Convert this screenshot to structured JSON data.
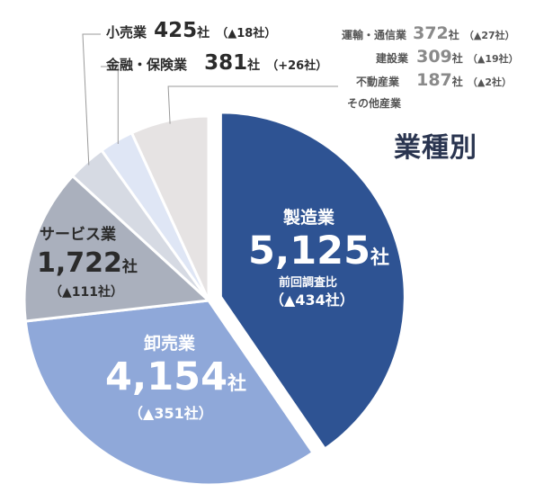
{
  "chart_data": {
    "type": "pie",
    "title": "業種別",
    "unit": "社",
    "change_caption": "前回調査比",
    "slices": [
      {
        "name": "製造業",
        "value": 5125,
        "value_text": "5,125",
        "change": "▲434社",
        "color": "#2e5393"
      },
      {
        "name": "卸売業",
        "value": 4154,
        "value_text": "4,154",
        "change": "▲351社",
        "color": "#8fa8d9"
      },
      {
        "name": "サービス業",
        "value": 1722,
        "value_text": "1,722",
        "change": "▲111社",
        "color": "#aab0bd"
      },
      {
        "name": "小売業",
        "value": 425,
        "value_text": "425",
        "change": "▲18社",
        "color": "#d6dae3"
      },
      {
        "name": "金融・保険業",
        "value": 381,
        "value_text": "381",
        "change": "+26社",
        "color": "#dfe6f5"
      },
      {
        "name": "その他産業",
        "value": 868,
        "color": "#e6e3e3"
      }
    ],
    "others_breakdown": [
      {
        "name": "運輸・通信業",
        "value": 372,
        "value_text": "372",
        "change": "▲27社"
      },
      {
        "name": "建設業",
        "value": 309,
        "value_text": "309",
        "change": "▲19社"
      },
      {
        "name": "不動産業",
        "value": 187,
        "value_text": "187",
        "change": "▲2社"
      }
    ]
  }
}
